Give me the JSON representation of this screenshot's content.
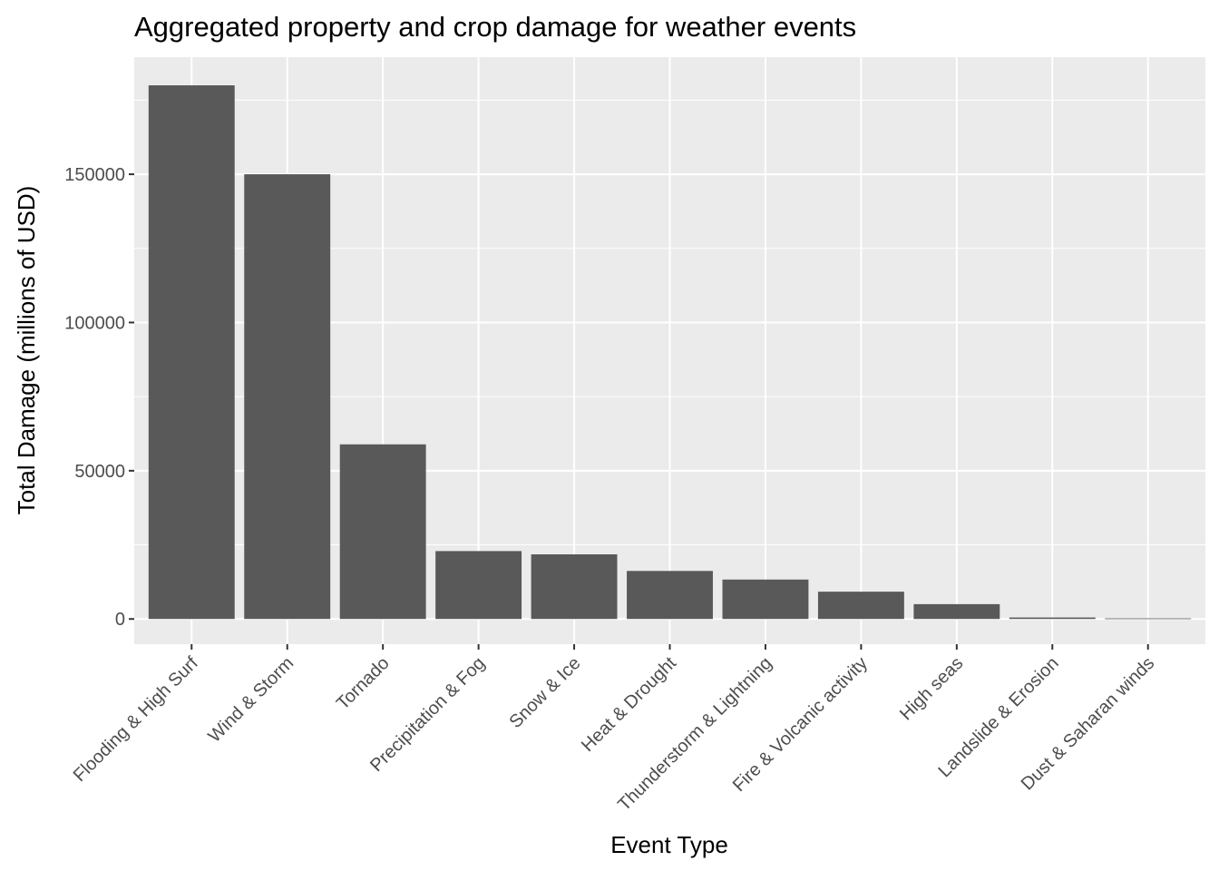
{
  "chart_data": {
    "type": "bar",
    "title": "Aggregated property and crop damage for weather events",
    "xlabel": "Event Type",
    "ylabel": "Total Damage (millions of USD)",
    "categories": [
      "Flooding & High Surf",
      "Wind & Storm",
      "Tornado",
      "Precipitation & Fog",
      "Snow & Ice",
      "Heat & Drought",
      "Thunderstorm & Lightning",
      "Fire & Volcanic activity",
      "High seas",
      "Landslide & Erosion",
      "Dust & Saharan winds"
    ],
    "values": [
      180000,
      150000,
      58900,
      22900,
      21800,
      16200,
      13300,
      9200,
      5000,
      500,
      200
    ],
    "ylim": [
      -8500,
      189500
    ],
    "yticks": [
      0,
      50000,
      100000,
      150000
    ],
    "ytick_labels": [
      "0",
      "50000",
      "100000",
      "150000"
    ],
    "grid": true,
    "legend": "none",
    "colors": {
      "bar": "#595959",
      "panel": "#ebebeb",
      "grid": "#ffffff",
      "axis_text": "#4d4d4d",
      "tick": "#333333",
      "title": "#000000"
    }
  }
}
